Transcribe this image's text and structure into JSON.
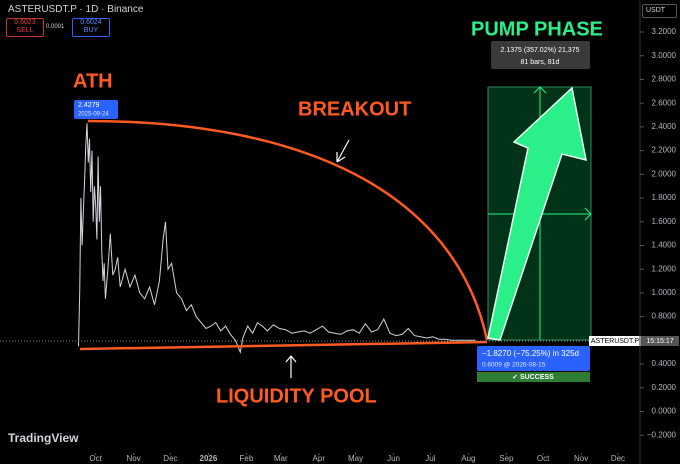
{
  "header": {
    "symbol": "ASTERUSDT.P · 1D · Binance",
    "sell_price": "0.6023",
    "sell": "SELL",
    "spread": "0.0001",
    "buy_price": "0.6024",
    "buy": "BUY",
    "currency": "USDT"
  },
  "chart_data": {
    "type": "line",
    "color": "#d1d4dc",
    "grid": false,
    "x": [
      -14,
      -13,
      -12,
      -11,
      -10,
      -9,
      -8,
      -7,
      -6,
      -5,
      -4,
      -3,
      -2,
      -1,
      0,
      1,
      2,
      3,
      4,
      5,
      6,
      7,
      8,
      10,
      12,
      14,
      16,
      18,
      20,
      24,
      28,
      32,
      36,
      40,
      44,
      48,
      52,
      55,
      57,
      59,
      62,
      66,
      70,
      74,
      78,
      82,
      86,
      90,
      94,
      98,
      102,
      106,
      110,
      114,
      118,
      120,
      124,
      128,
      132,
      136,
      140,
      145,
      150,
      155,
      160,
      165,
      170,
      175,
      180,
      185,
      190,
      195,
      200,
      205,
      210,
      215,
      220,
      225,
      230,
      235,
      240,
      245,
      250,
      255,
      260,
      265,
      270,
      275,
      280,
      285,
      290,
      295,
      300,
      305,
      310
    ],
    "values": [
      0.55,
      1.0,
      1.8,
      1.4,
      1.7,
      1.95,
      2.25,
      2.43,
      2.1,
      2.3,
      1.85,
      2.2,
      1.6,
      1.9,
      1.75,
      1.45,
      2.15,
      1.6,
      1.9,
      1.35,
      1.1,
      1.25,
      0.95,
      1.2,
      1.5,
      1.15,
      1.2,
      1.3,
      1.05,
      1.2,
      1.05,
      1.15,
      1.0,
      0.95,
      1.05,
      0.9,
      1.1,
      1.45,
      1.6,
      1.2,
      1.25,
      1.0,
      0.95,
      0.85,
      0.9,
      0.8,
      0.75,
      0.7,
      0.72,
      0.75,
      0.68,
      0.72,
      0.65,
      0.6,
      0.5,
      0.62,
      0.72,
      0.66,
      0.75,
      0.72,
      0.68,
      0.73,
      0.7,
      0.69,
      0.66,
      0.67,
      0.68,
      0.66,
      0.69,
      0.72,
      0.67,
      0.66,
      0.65,
      0.68,
      0.69,
      0.66,
      0.74,
      0.67,
      0.69,
      0.78,
      0.66,
      0.64,
      0.65,
      0.7,
      0.64,
      0.63,
      0.62,
      0.63,
      0.61,
      0.61,
      0.6,
      0.6,
      0.6,
      0.6,
      0.6
    ],
    "xlim": [
      -78,
      444
    ],
    "xticks": [
      {
        "value": 0,
        "label": "Oct"
      },
      {
        "value": 31,
        "label": "Nov"
      },
      {
        "value": 61,
        "label": "Dec"
      },
      {
        "value": 92,
        "label": "2026"
      },
      {
        "value": 123,
        "label": "Feb"
      },
      {
        "value": 151,
        "label": "Mar"
      },
      {
        "value": 182,
        "label": "Apr"
      },
      {
        "value": 212,
        "label": "May"
      },
      {
        "value": 243,
        "label": "Jun"
      },
      {
        "value": 273,
        "label": "Jul"
      },
      {
        "value": 304,
        "label": "Aug"
      },
      {
        "value": 335,
        "label": "Sep"
      },
      {
        "value": 365,
        "label": "Oct"
      },
      {
        "value": 396,
        "label": "Nov"
      },
      {
        "value": 426,
        "label": "Dec"
      }
    ],
    "ylim": [
      -0.35,
      3.47
    ],
    "yticks": [
      {
        "value": 3.2,
        "label": "3.2000"
      },
      {
        "value": 3.0,
        "label": "3.0000"
      },
      {
        "value": 2.8,
        "label": "2.8000"
      },
      {
        "value": 2.6,
        "label": "2.6000"
      },
      {
        "value": 2.4,
        "label": "2.4000"
      },
      {
        "value": 2.2,
        "label": "2.2000"
      },
      {
        "value": 2.0,
        "label": "2.0000"
      },
      {
        "value": 1.8,
        "label": "1.8000"
      },
      {
        "value": 1.6,
        "label": "1.6000"
      },
      {
        "value": 1.4,
        "label": "1.4000"
      },
      {
        "value": 1.2,
        "label": "1.2000"
      },
      {
        "value": 1.0,
        "label": "1.0000"
      },
      {
        "value": 0.8,
        "label": "0.8000"
      },
      {
        "value": 0.4,
        "label": "0.4000"
      },
      {
        "value": 0.2,
        "label": "0.2000"
      },
      {
        "value": 0,
        "label": "0.0000"
      },
      {
        "value": -0.2,
        "label": "−0.2000"
      }
    ],
    "annotations": {
      "ath": "ATH",
      "breakout": "BREAKOUT",
      "liquidity": "LIQUIDITY POOL",
      "pump": "PUMP PHASE",
      "ath_price": "2.4279",
      "ath_date": "2025-09-24",
      "measure_change": "2.1375 (357.02%) 21,375",
      "measure_bars": "81 bars, 81d",
      "drop_change": "−1.8270 (−75.25%) in 325d",
      "drop_detail": "0.6009 @ 2026-08-15",
      "success": "✓ SUCCESS",
      "price_symbol": "ASTERUSDT.P",
      "countdown": "15:15:17"
    }
  },
  "footer": {
    "logo": "TradingView"
  }
}
